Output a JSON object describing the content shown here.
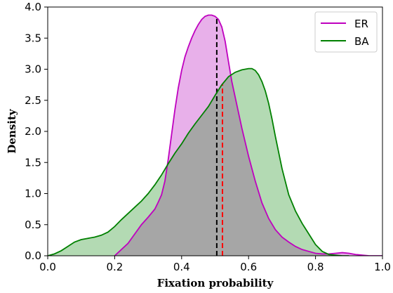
{
  "chart_data": {
    "type": "area",
    "xlabel": "Fixation probability",
    "ylabel": "Density",
    "xlim": [
      0.0,
      1.0
    ],
    "ylim": [
      0.0,
      4.0
    ],
    "xticks": [
      "0.0",
      "0.2",
      "0.4",
      "0.6",
      "0.8",
      "1.0"
    ],
    "yticks": [
      "0.0",
      "0.5",
      "1.0",
      "1.5",
      "2.0",
      "2.5",
      "3.0",
      "3.5",
      "4.0"
    ],
    "grid": false,
    "legend_position": "top-right",
    "overlap_color": "#a6a6a6",
    "series": [
      {
        "name": "ER",
        "color": "#bf00bf",
        "fill": "#e8b0ea",
        "mean": 0.505,
        "mean_line_color": "#000000",
        "x": [
          0.2,
          0.24,
          0.28,
          0.3,
          0.32,
          0.33,
          0.34,
          0.35,
          0.36,
          0.37,
          0.38,
          0.39,
          0.4,
          0.41,
          0.42,
          0.43,
          0.44,
          0.45,
          0.46,
          0.47,
          0.48,
          0.49,
          0.5,
          0.51,
          0.52,
          0.53,
          0.54,
          0.55,
          0.56,
          0.57,
          0.58,
          0.6,
          0.62,
          0.64,
          0.66,
          0.68,
          0.7,
          0.72,
          0.74,
          0.76,
          0.78,
          0.8,
          0.82,
          0.84,
          0.86,
          0.88,
          0.9,
          0.92,
          0.94,
          0.96,
          1.0
        ],
        "y": [
          0.0,
          0.2,
          0.5,
          0.62,
          0.75,
          0.86,
          0.98,
          1.2,
          1.55,
          1.95,
          2.35,
          2.7,
          2.98,
          3.2,
          3.36,
          3.5,
          3.62,
          3.72,
          3.8,
          3.85,
          3.87,
          3.87,
          3.85,
          3.8,
          3.68,
          3.45,
          3.12,
          2.8,
          2.55,
          2.3,
          2.05,
          1.6,
          1.2,
          0.85,
          0.6,
          0.42,
          0.3,
          0.22,
          0.15,
          0.1,
          0.07,
          0.04,
          0.03,
          0.03,
          0.04,
          0.05,
          0.04,
          0.02,
          0.01,
          0.0,
          0.0
        ]
      },
      {
        "name": "BA",
        "color": "#008000",
        "fill": "#b3dab3",
        "mean": 0.522,
        "mean_line_color": "#ff0000",
        "x": [
          0.0,
          0.02,
          0.04,
          0.06,
          0.08,
          0.1,
          0.12,
          0.14,
          0.16,
          0.18,
          0.2,
          0.22,
          0.24,
          0.26,
          0.28,
          0.3,
          0.32,
          0.34,
          0.36,
          0.38,
          0.4,
          0.42,
          0.44,
          0.46,
          0.48,
          0.5,
          0.52,
          0.54,
          0.56,
          0.58,
          0.6,
          0.61,
          0.62,
          0.63,
          0.64,
          0.65,
          0.66,
          0.67,
          0.68,
          0.7,
          0.72,
          0.74,
          0.76,
          0.78,
          0.8,
          0.82,
          0.84,
          0.86,
          0.88,
          0.9
        ],
        "y": [
          0.0,
          0.03,
          0.08,
          0.15,
          0.22,
          0.26,
          0.28,
          0.3,
          0.33,
          0.38,
          0.47,
          0.58,
          0.68,
          0.78,
          0.88,
          1.0,
          1.14,
          1.3,
          1.48,
          1.65,
          1.8,
          1.97,
          2.12,
          2.26,
          2.4,
          2.58,
          2.75,
          2.88,
          2.95,
          2.99,
          3.01,
          3.01,
          2.98,
          2.91,
          2.8,
          2.65,
          2.45,
          2.2,
          1.92,
          1.4,
          0.98,
          0.72,
          0.52,
          0.35,
          0.18,
          0.07,
          0.02,
          0.01,
          0.0,
          0.0
        ]
      }
    ]
  }
}
